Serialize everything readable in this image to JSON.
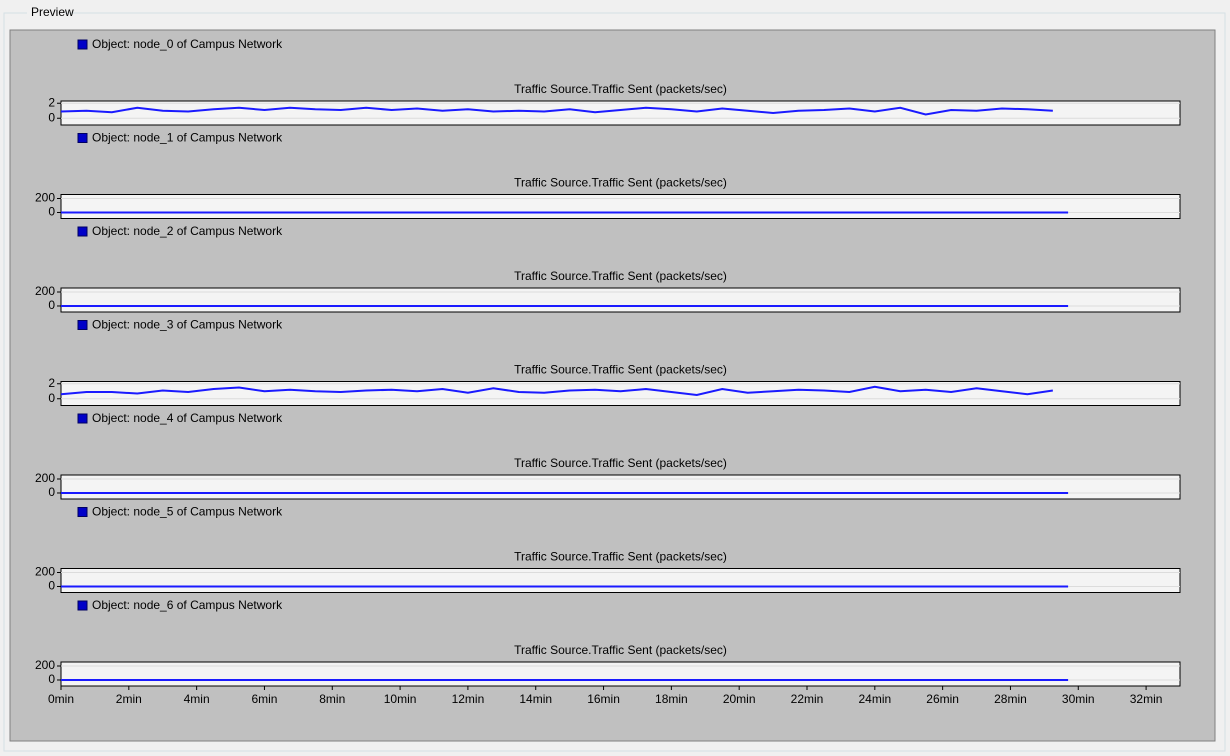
{
  "window": {
    "title": "Preview"
  },
  "chart_data": [
    {
      "type": "line",
      "title": "Traffic Source.Traffic Sent (packets/sec)",
      "xlim": [
        0,
        33
      ],
      "ylim": [
        -0.9,
        2.3
      ],
      "yticks": [
        0,
        2
      ],
      "grid": true,
      "x": [
        0,
        0.75,
        1.5,
        2.25,
        3,
        3.75,
        4.5,
        5.25,
        6,
        6.75,
        7.5,
        8.25,
        9,
        9.75,
        10.5,
        11.25,
        12,
        12.75,
        13.5,
        14.25,
        15,
        15.75,
        16.5,
        17.25,
        18,
        18.75,
        19.5,
        20.25,
        21,
        21.75,
        22.5,
        23.25,
        24,
        24.75,
        25.5,
        26.25,
        27,
        27.75,
        28.5,
        29.25
      ],
      "series": [
        {
          "name": "Object: node_0 of Campus Network",
          "color": "#1a1aff",
          "values": [
            0.9,
            1.0,
            0.8,
            1.4,
            1.0,
            0.9,
            1.2,
            1.4,
            1.1,
            1.4,
            1.2,
            1.1,
            1.4,
            1.1,
            1.3,
            1.0,
            1.2,
            0.9,
            1.0,
            0.9,
            1.2,
            0.8,
            1.1,
            1.4,
            1.2,
            0.9,
            1.3,
            1.0,
            0.7,
            1.0,
            1.1,
            1.3,
            0.9,
            1.4,
            0.5,
            1.1,
            1.0,
            1.3,
            1.2,
            1.0
          ]
        }
      ]
    },
    {
      "type": "line",
      "title": "Traffic Source.Traffic Sent (packets/sec)",
      "xlim": [
        0,
        33
      ],
      "ylim": [
        -86,
        257
      ],
      "yticks": [
        0,
        200
      ],
      "grid": true,
      "x": [
        0,
        29.7
      ],
      "series": [
        {
          "name": "Object: node_1 of Campus Network",
          "color": "#1a1aff",
          "values": [
            0,
            0
          ]
        }
      ]
    },
    {
      "type": "line",
      "title": "Traffic Source.Traffic Sent (packets/sec)",
      "xlim": [
        0,
        33
      ],
      "ylim": [
        -86,
        257
      ],
      "yticks": [
        0,
        200
      ],
      "grid": true,
      "x": [
        0,
        29.7
      ],
      "series": [
        {
          "name": "Object: node_2 of Campus Network",
          "color": "#1a1aff",
          "values": [
            0,
            0
          ]
        }
      ]
    },
    {
      "type": "line",
      "title": "Traffic Source.Traffic Sent (packets/sec)",
      "xlim": [
        0,
        33
      ],
      "ylim": [
        -0.9,
        2.3
      ],
      "yticks": [
        0,
        2
      ],
      "grid": true,
      "x": [
        0,
        0.75,
        1.5,
        2.25,
        3,
        3.75,
        4.5,
        5.25,
        6,
        6.75,
        7.5,
        8.25,
        9,
        9.75,
        10.5,
        11.25,
        12,
        12.75,
        13.5,
        14.25,
        15,
        15.75,
        16.5,
        17.25,
        18,
        18.75,
        19.5,
        20.25,
        21,
        21.75,
        22.5,
        23.25,
        24,
        24.75,
        25.5,
        26.25,
        27,
        27.75,
        28.5,
        29.25
      ],
      "series": [
        {
          "name": "Object: node_3 of Campus Network",
          "color": "#1a1aff",
          "values": [
            0.6,
            0.9,
            0.9,
            0.7,
            1.1,
            0.9,
            1.3,
            1.5,
            1.0,
            1.2,
            1.0,
            0.9,
            1.1,
            1.2,
            1.0,
            1.3,
            0.8,
            1.4,
            0.9,
            0.8,
            1.1,
            1.2,
            1.0,
            1.3,
            0.9,
            0.5,
            1.3,
            0.8,
            1.0,
            1.2,
            1.1,
            0.9,
            1.6,
            1.0,
            1.2,
            0.9,
            1.4,
            1.0,
            0.6,
            1.1
          ]
        }
      ]
    },
    {
      "type": "line",
      "title": "Traffic Source.Traffic Sent (packets/sec)",
      "xlim": [
        0,
        33
      ],
      "ylim": [
        -86,
        257
      ],
      "yticks": [
        0,
        200
      ],
      "grid": true,
      "x": [
        0,
        29.7
      ],
      "series": [
        {
          "name": "Object: node_4 of Campus Network",
          "color": "#1a1aff",
          "values": [
            0,
            0
          ]
        }
      ]
    },
    {
      "type": "line",
      "title": "Traffic Source.Traffic Sent (packets/sec)",
      "xlim": [
        0,
        33
      ],
      "ylim": [
        -86,
        257
      ],
      "yticks": [
        0,
        200
      ],
      "grid": true,
      "x": [
        0,
        29.7
      ],
      "series": [
        {
          "name": "Object: node_5 of Campus Network",
          "color": "#1a1aff",
          "values": [
            0,
            0
          ]
        }
      ]
    },
    {
      "type": "line",
      "title": "Traffic Source.Traffic Sent (packets/sec)",
      "xlim": [
        0,
        33
      ],
      "ylim": [
        -86,
        257
      ],
      "yticks": [
        0,
        200
      ],
      "grid": true,
      "x": [
        0,
        29.7
      ],
      "series": [
        {
          "name": "Object: node_6 of Campus Network",
          "color": "#1a1aff",
          "values": [
            0,
            0
          ]
        }
      ],
      "xticks": [
        {
          "value": 0,
          "label": "0min"
        },
        {
          "value": 2,
          "label": "2min"
        },
        {
          "value": 4,
          "label": "4min"
        },
        {
          "value": 6,
          "label": "6min"
        },
        {
          "value": 8,
          "label": "8min"
        },
        {
          "value": 10,
          "label": "10min"
        },
        {
          "value": 12,
          "label": "12min"
        },
        {
          "value": 14,
          "label": "14min"
        },
        {
          "value": 16,
          "label": "16min"
        },
        {
          "value": 18,
          "label": "18min"
        },
        {
          "value": 20,
          "label": "20min"
        },
        {
          "value": 22,
          "label": "22min"
        },
        {
          "value": 24,
          "label": "24min"
        },
        {
          "value": 26,
          "label": "26min"
        },
        {
          "value": 28,
          "label": "28min"
        },
        {
          "value": 30,
          "label": "30min"
        },
        {
          "value": 32,
          "label": "32min"
        }
      ]
    }
  ]
}
